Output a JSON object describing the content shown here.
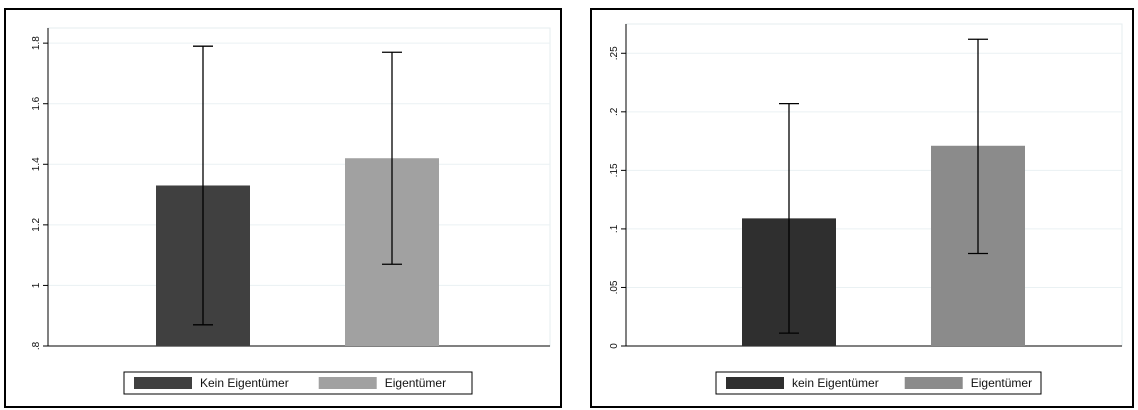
{
  "chart_data": [
    {
      "type": "bar",
      "categories": [
        "Kein Eigentümer",
        "Eigentümer"
      ],
      "values": [
        1.33,
        1.42
      ],
      "error_bars": [
        {
          "low": 0.87,
          "high": 1.79
        },
        {
          "low": 1.07,
          "high": 1.77
        }
      ],
      "colors": [
        "#404040",
        "#a1a1a1"
      ],
      "yticks": [
        0.8,
        1.0,
        1.2,
        1.4,
        1.6,
        1.8
      ],
      "ytick_labels": [
        ".8",
        "1",
        "1.2",
        "1.4",
        "1.6",
        "1.8"
      ],
      "ylim": [
        0.8,
        1.85
      ],
      "legend": [
        "Kein Eigentümer",
        "Eigentümer"
      ],
      "legend_position": "bottom",
      "title": "",
      "xlabel": "",
      "ylabel": "",
      "grid": true
    },
    {
      "type": "bar",
      "categories": [
        "kein Eigentümer",
        "Eigentümer"
      ],
      "values": [
        0.109,
        0.171
      ],
      "error_bars": [
        {
          "low": 0.011,
          "high": 0.207
        },
        {
          "low": 0.079,
          "high": 0.262
        }
      ],
      "colors": [
        "#2f2f2f",
        "#8b8b8b"
      ],
      "yticks": [
        0,
        0.05,
        0.1,
        0.15,
        0.2,
        0.25
      ],
      "ytick_labels": [
        "0",
        ".05",
        ".1",
        ".15",
        ".2",
        ".25"
      ],
      "ylim": [
        0,
        0.275
      ],
      "legend": [
        "kein Eigentümer",
        "Eigentümer"
      ],
      "legend_position": "bottom",
      "title": "",
      "xlabel": "",
      "ylabel": "",
      "grid": true
    }
  ]
}
